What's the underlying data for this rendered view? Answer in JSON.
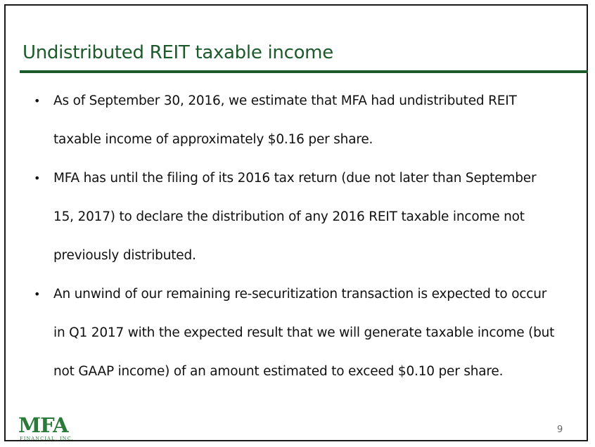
{
  "slide": {
    "title": "Undistributed REIT taxable income",
    "bullets": [
      {
        "lines": [
          "As of September 30, 2016, we estimate that MFA had undistributed REIT",
          "taxable income of approximately $0.16 per share."
        ]
      },
      {
        "lines": [
          "MFA has until the filing of its 2016 tax return (due not later than September",
          "15, 2017) to declare the distribution of any 2016 REIT taxable income not",
          "previously distributed."
        ]
      },
      {
        "lines": [
          "An unwind of our remaining re-securitization transaction is expected to occur",
          "in Q1 2017 with the expected result that we will generate taxable income (but",
          "not GAAP income) of an amount estimated to exceed $0.10 per share."
        ]
      }
    ],
    "bullet_symbol": "•",
    "page_number": "9"
  },
  "logo": {
    "mark": "MFA",
    "subtitle": "FINANCIAL, INC.",
    "color": "#2a7a3a"
  },
  "colors": {
    "title": "#1d5a2b",
    "rule": "#1d5a2b",
    "border": "#1a1a1a"
  }
}
